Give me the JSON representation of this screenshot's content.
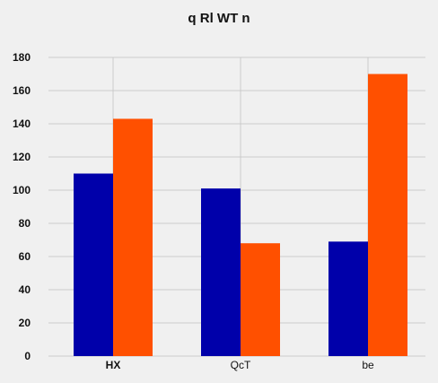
{
  "chart_data": {
    "type": "bar",
    "title": "q Rl WT n",
    "categories": [
      "HX",
      "QcT",
      "be"
    ],
    "series": [
      {
        "values": [
          110,
          101,
          69
        ],
        "color": "#0000aa"
      },
      {
        "values": [
          143,
          68,
          170
        ],
        "color": "#ff5000"
      }
    ],
    "yticks": [
      0,
      20,
      40,
      60,
      80,
      100,
      120,
      140,
      160,
      180
    ],
    "ylim": [
      0,
      180
    ],
    "grid": true,
    "background": "#f0f0f0",
    "grid_color": "#cbcbcb"
  }
}
